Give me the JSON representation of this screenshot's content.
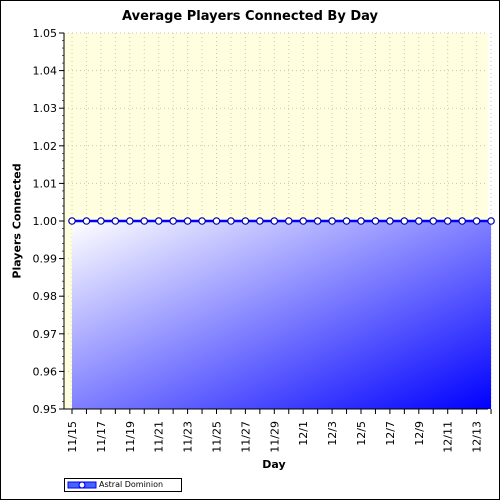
{
  "chart_data": {
    "type": "area",
    "title": "Average Players Connected By Day",
    "xlabel": "Day",
    "ylabel": "Players Connected",
    "ylim": [
      0.95,
      1.05
    ],
    "yticks": [
      "0.95",
      "0.96",
      "0.97",
      "0.98",
      "0.99",
      "1.00",
      "1.01",
      "1.02",
      "1.03",
      "1.04",
      "1.05"
    ],
    "x": [
      "11/15",
      "11/16",
      "11/17",
      "11/18",
      "11/19",
      "11/20",
      "11/21",
      "11/22",
      "11/23",
      "11/24",
      "11/25",
      "11/26",
      "11/27",
      "11/28",
      "11/29",
      "11/30",
      "12/1",
      "12/2",
      "12/3",
      "12/4",
      "12/5",
      "12/6",
      "12/7",
      "12/8",
      "12/9",
      "12/10",
      "12/11",
      "12/12",
      "12/13",
      "12/14"
    ],
    "x_tick_labels": [
      "11/15",
      "11/17",
      "11/19",
      "11/21",
      "11/23",
      "11/25",
      "11/27",
      "11/29",
      "12/1",
      "12/3",
      "12/5",
      "12/7",
      "12/9",
      "12/11",
      "12/13"
    ],
    "series": [
      {
        "name": "Astral Dominion",
        "values": [
          1,
          1,
          1,
          1,
          1,
          1,
          1,
          1,
          1,
          1,
          1,
          1,
          1,
          1,
          1,
          1,
          1,
          1,
          1,
          1,
          1,
          1,
          1,
          1,
          1,
          1,
          1,
          1,
          1,
          1
        ],
        "color": "#0000ff"
      }
    ],
    "background_color": "#ffffe0",
    "grid": true,
    "legend_position": "bottom-left"
  }
}
